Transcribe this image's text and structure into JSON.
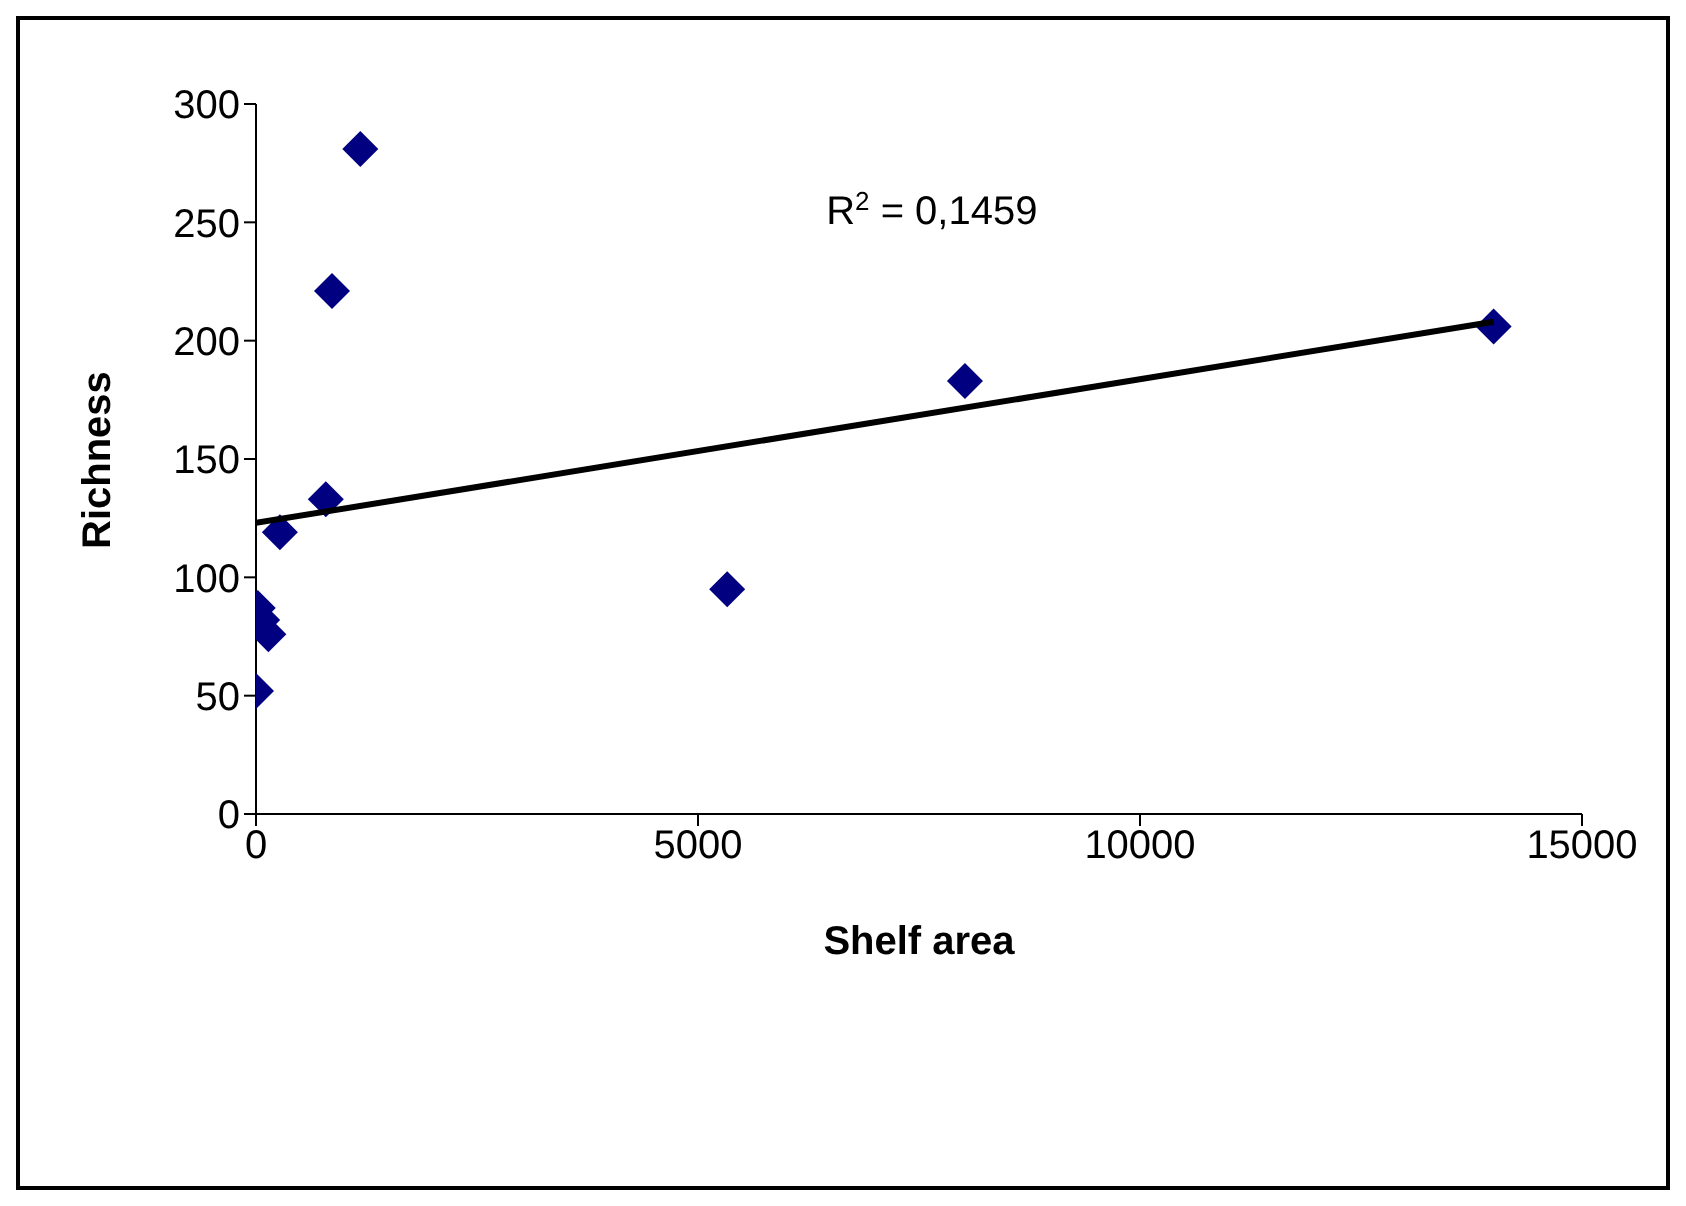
{
  "chart_data": {
    "type": "scatter",
    "xlabel": "Shelf area",
    "ylabel": "Richness",
    "xlim": [
      0,
      15000
    ],
    "xticks": [
      0,
      5000,
      10000,
      15000
    ],
    "ylim": [
      0,
      300
    ],
    "yticks": [
      0,
      50,
      100,
      150,
      200,
      250,
      300
    ],
    "annotations": [
      "R$^{2}$ = 0,1459"
    ],
    "series": [
      {
        "marker": "diamond",
        "color": "#000080",
        "x": [
          0,
          20,
          70,
          140,
          270,
          790,
          860,
          1180,
          5330,
          8020,
          14000
        ],
        "values": [
          52,
          87,
          82,
          76,
          119,
          133,
          221,
          281,
          95,
          183,
          206
        ]
      },
      {
        "type": "line",
        "marker": "none",
        "color": "#000000",
        "x": [
          0,
          14000
        ],
        "values": [
          123,
          208
        ]
      }
    ]
  }
}
